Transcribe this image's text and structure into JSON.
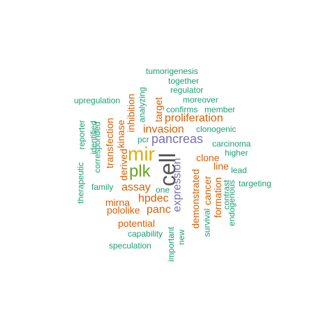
{
  "colors": {
    "teal": "#1b9e77",
    "orange": "#d95f02",
    "purple": "#7570b3",
    "gold": "#e6ab02",
    "green": "#66a61e",
    "gray": "#555555"
  },
  "words": {
    "tumorigenesis": "tumorigenesis",
    "together": "together",
    "regulator": "regulator",
    "upregulation": "upregulation",
    "moreover": "moreover",
    "confirms": "confirms",
    "member": "member",
    "proliferation": "proliferation",
    "target": "target",
    "analyzing": "analyzing",
    "inhibition": "inhibition",
    "kinase": "kinase",
    "transfection": "transfection",
    "identified": "identified",
    "reporter": "reporter",
    "corresponded": "corresponded",
    "invasion": "invasion",
    "clonogenic": "clonogenic",
    "pcr": "pcr",
    "pancreas": "pancreas",
    "carcinoma": "carcinoma",
    "higher": "higher",
    "mir": "mir",
    "derived": "derived",
    "cell": "cell",
    "clone": "clone",
    "line": "line",
    "lead": "lead",
    "plk": "plk",
    "therapeutic": "therapeutic",
    "family": "family",
    "assay": "assay",
    "one": "one",
    "expression": "expression",
    "demonstrated": "demonstrated",
    "cancer": "cancer",
    "formation": "formation",
    "contrast": "contrast",
    "endogenous": "endogenous",
    "targeting": "targeting",
    "hpdec": "hpdec",
    "mirna": "mirna",
    "pololike": "pololike",
    "panc": "panc",
    "survival": "survival",
    "potential": "potential",
    "capability": "capability",
    "new": "new",
    "important": "important",
    "speculation": "speculation"
  }
}
